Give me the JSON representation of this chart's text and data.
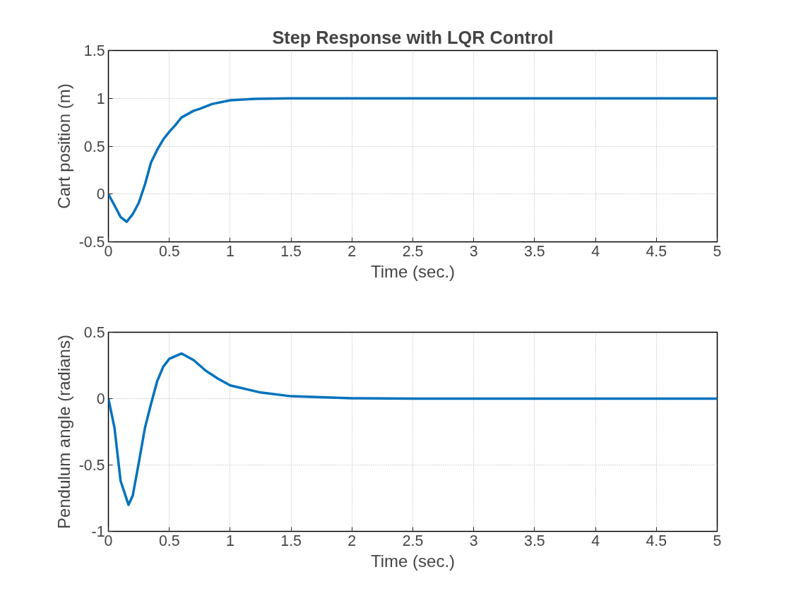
{
  "chart_data": [
    {
      "type": "line",
      "title": "Step Response with LQR Control",
      "xlabel": "Time (sec.)",
      "ylabel": "Cart position (m)",
      "xlim": [
        0,
        5
      ],
      "ylim": [
        -0.5,
        1.5
      ],
      "xticks": [
        0,
        0.5,
        1,
        1.5,
        2,
        2.5,
        3,
        3.5,
        4,
        4.5,
        5
      ],
      "yticks": [
        -0.5,
        0,
        0.5,
        1,
        1.5
      ],
      "grid": true,
      "marker": "none",
      "line_style": "solid",
      "series": [
        {
          "color": "#0072bd",
          "x": [
            0,
            0.05,
            0.1,
            0.15,
            0.2,
            0.25,
            0.3,
            0.35,
            0.4,
            0.45,
            0.5,
            0.55,
            0.6,
            0.7,
            0.75,
            0.85,
            1,
            1.2,
            1.5,
            2,
            2.5,
            3,
            3.5,
            4,
            4.5,
            5
          ],
          "values": [
            0,
            -0.12,
            -0.24,
            -0.29,
            -0.21,
            -0.09,
            0.1,
            0.33,
            0.46,
            0.57,
            0.65,
            0.72,
            0.8,
            0.87,
            0.89,
            0.94,
            0.98,
            0.995,
            1,
            1,
            1,
            1,
            1,
            1,
            1,
            1
          ]
        }
      ]
    },
    {
      "type": "line",
      "xlabel": "Time (sec.)",
      "ylabel": "Pendulum angle (radians)",
      "xlim": [
        0,
        5
      ],
      "ylim": [
        -1,
        0.5
      ],
      "xticks": [
        0,
        0.5,
        1,
        1.5,
        2,
        2.5,
        3,
        3.5,
        4,
        4.5,
        5
      ],
      "yticks": [
        -1,
        -0.5,
        0,
        0.5
      ],
      "grid": true,
      "marker": "none",
      "line_style": "solid",
      "series": [
        {
          "color": "#0072bd",
          "x": [
            0,
            0.05,
            0.1,
            0.165,
            0.2,
            0.25,
            0.3,
            0.35,
            0.4,
            0.45,
            0.5,
            0.6,
            0.7,
            0.8,
            0.9,
            1,
            1.25,
            1.5,
            2,
            2.5,
            3,
            3.5,
            4,
            4.5,
            5
          ],
          "values": [
            0,
            -0.22,
            -0.62,
            -0.8,
            -0.73,
            -0.48,
            -0.22,
            -0.04,
            0.13,
            0.24,
            0.3,
            0.34,
            0.29,
            0.21,
            0.15,
            0.1,
            0.046,
            0.018,
            0.003,
            0,
            0,
            0,
            0,
            0,
            0
          ]
        }
      ]
    }
  ]
}
